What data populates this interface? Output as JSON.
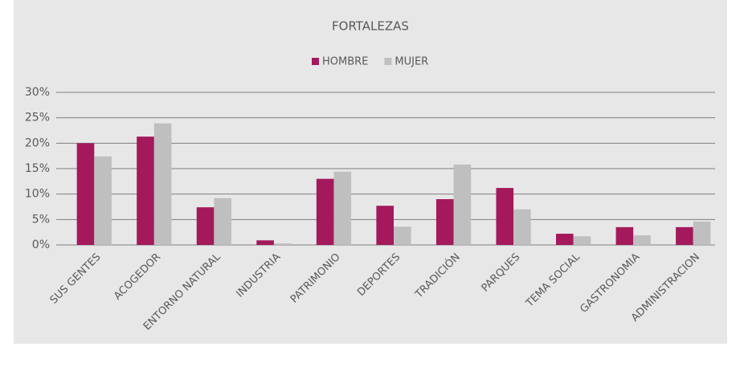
{
  "chart_data": {
    "type": "bar",
    "title": "FORTALEZAS",
    "categories": [
      "SUS GENTES",
      "ACOGEDOR",
      "ENTORNO NATURAL",
      "INDUSTRIA",
      "PATRIMONIO",
      "DEPORTES",
      "TRADICIÓN",
      "PARQUES",
      "TEMA SOCIAL",
      "GASTRONOMIA",
      "ADMINISTRACION"
    ],
    "series": [
      {
        "name": "HOMBRE",
        "color": "#a3195b",
        "values": [
          20,
          21.3,
          7.4,
          0.9,
          13,
          7.7,
          9,
          11.2,
          2.2,
          3.5,
          3.5
        ]
      },
      {
        "name": "MUJER",
        "color": "#bfbfbf",
        "values": [
          17.4,
          23.9,
          9.2,
          0.3,
          14.4,
          3.6,
          15.8,
          7,
          1.7,
          1.9,
          4.6
        ]
      }
    ],
    "ylim": [
      0,
      30
    ],
    "yticks": [
      {
        "value": 0,
        "label": "0%"
      },
      {
        "value": 5,
        "label": "5%"
      },
      {
        "value": 10,
        "label": "10%"
      },
      {
        "value": 15,
        "label": "15%"
      },
      {
        "value": 20,
        "label": "20%"
      },
      {
        "value": 25,
        "label": "25%"
      },
      {
        "value": 30,
        "label": "30%"
      }
    ],
    "grid": true,
    "legend": "top"
  }
}
